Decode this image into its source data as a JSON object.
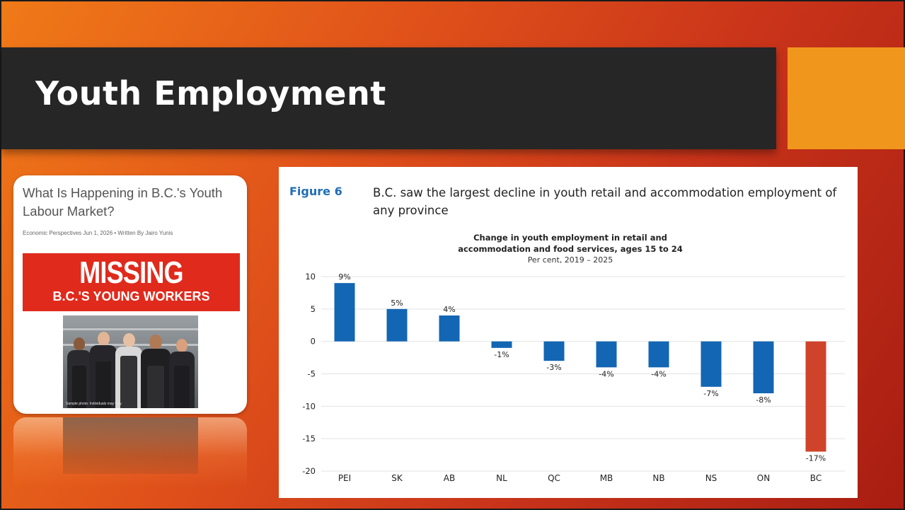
{
  "slide": {
    "title": "Youth Employment",
    "colors": {
      "background_start": "#f07a18",
      "background_end": "#a81d12",
      "title_bar": "#262626",
      "accent_square": "#f0961c"
    }
  },
  "article": {
    "headline": "What Is Happening in B.C.'s Youth Labour Market?",
    "meta": "Economic Perspectives  Jun 1, 2026  •  Written By Jairo Yunis",
    "banner_title": "MISSING",
    "banner_subtitle": "B.C.'S YOUNG WORKERS",
    "photo_caption": "Sample photo: Individuals may vary",
    "banner_color": "#e02a1c"
  },
  "figure": {
    "label": "Figure 6",
    "caption": "B.C. saw the largest decline in youth retail and accommodation employment of any province"
  },
  "chart_data": {
    "type": "bar",
    "title": "Change in youth employment in retail and accommodation and food services, ages 15 to 24",
    "title_lines": [
      "Change in youth employment in retail and",
      "accommodation and food services, ages 15 to 24"
    ],
    "subtitle": "Per cent, 2019 – 2025",
    "categories": [
      "PEI",
      "SK",
      "AB",
      "NL",
      "QC",
      "MB",
      "NB",
      "NS",
      "ON",
      "BC"
    ],
    "values": [
      9,
      5,
      4,
      -1,
      -3,
      -4,
      -4,
      -7,
      -8,
      -17
    ],
    "data_labels": [
      "9%",
      "5%",
      "4%",
      "-1%",
      "-3%",
      "-4%",
      "-4%",
      "-7%",
      "-8%",
      "-17%"
    ],
    "yticks": [
      10,
      5,
      0,
      -5,
      -10,
      -15,
      -20
    ],
    "ylim": [
      -20,
      10
    ],
    "xlabel": "",
    "ylabel": "",
    "grid": true,
    "legend": "none",
    "colors": {
      "default": "#1366b3",
      "highlight": "#d0432b",
      "highlight_category": "BC",
      "grid": "#e3e3e3"
    }
  }
}
